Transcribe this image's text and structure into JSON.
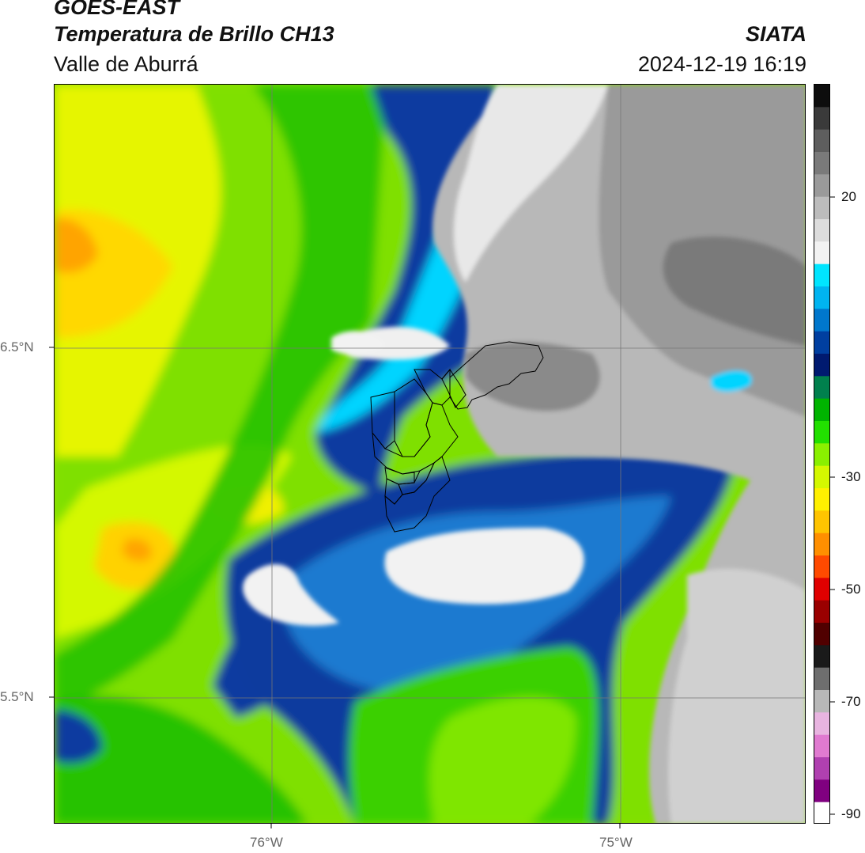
{
  "header": {
    "satellite": "GOES-EAST",
    "product": "Temperatura de Brillo CH13",
    "region": "Valle de Aburrá",
    "org": "SIATA",
    "datetime": "2024-12-19 16:19"
  },
  "axes": {
    "lat_labels": [
      "6.5°N",
      "5.5°N"
    ],
    "lon_labels": [
      "76°W",
      "75°W"
    ]
  },
  "colorbar": {
    "ticks": [
      "20",
      "-30",
      "-50",
      "-70",
      "-90"
    ],
    "colors": [
      "#0d0d0d",
      "#3a3a3a",
      "#5e5e5e",
      "#7a7a7a",
      "#9a9a9a",
      "#bcbcbc",
      "#dcdcdc",
      "#f2f2f2",
      "#00e5ff",
      "#00b4f0",
      "#0077cc",
      "#003fa0",
      "#001a70",
      "#00804d",
      "#00b400",
      "#22e000",
      "#8af000",
      "#d4f800",
      "#fff000",
      "#ffc400",
      "#ff8f00",
      "#ff4a00",
      "#e00000",
      "#9a0000",
      "#500000",
      "#1a1a1a",
      "#6e6e6e",
      "#b8b8b8",
      "#e8b4e0",
      "#e07ad0",
      "#b040b0",
      "#800080",
      "#ffffff"
    ]
  }
}
